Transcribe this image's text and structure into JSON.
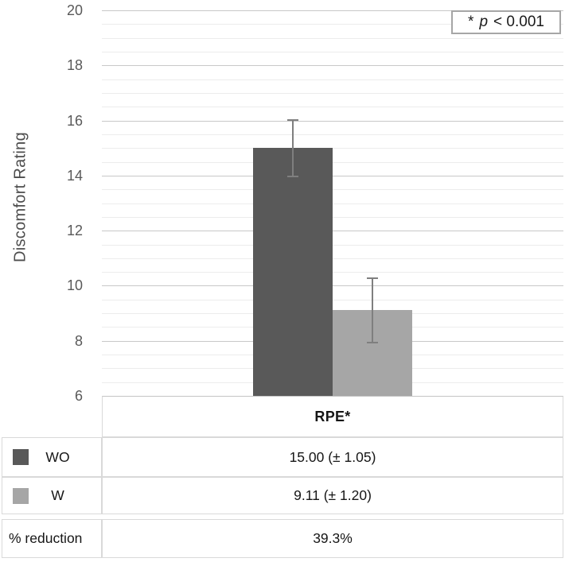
{
  "chart_data": {
    "type": "bar",
    "title": "",
    "ylabel": "Discomfort Rating",
    "xlabel": "",
    "categories": [
      "RPE*"
    ],
    "series": [
      {
        "name": "WO",
        "values": [
          15.0
        ],
        "errors": [
          1.05
        ],
        "color": "#595959"
      },
      {
        "name": "W",
        "values": [
          9.11
        ],
        "errors": [
          1.2
        ],
        "color": "#a6a6a6"
      }
    ],
    "ylim": [
      6,
      20
    ],
    "ytick_step": 2,
    "minor_gridline_step": 0.5,
    "grid": true,
    "legend_position": "table-below",
    "annotation": "* p < 0.001"
  },
  "annotation_box": {
    "star": "*",
    "p_symbol": "p",
    "comparison": "< 0.001"
  },
  "table": {
    "header": "RPE*",
    "rows": [
      {
        "label": "WO",
        "swatch": "#595959",
        "value": "15.00 (± 1.05)"
      },
      {
        "label": "W",
        "swatch": "#a6a6a6",
        "value": "9.11 (± 1.20)"
      },
      {
        "label": "% reduction",
        "swatch": null,
        "value": "39.3%"
      }
    ]
  },
  "colors": {
    "bar_dark": "#595959",
    "bar_light": "#a6a6a6",
    "error_bar": "#7f7f7f",
    "grid_major": "#c8c8c8",
    "grid_minor": "#ececec",
    "table_border": "#d9d9d9",
    "annotation_border": "#a6a6a6",
    "tick_text": "#595959",
    "background": "#ffffff"
  }
}
